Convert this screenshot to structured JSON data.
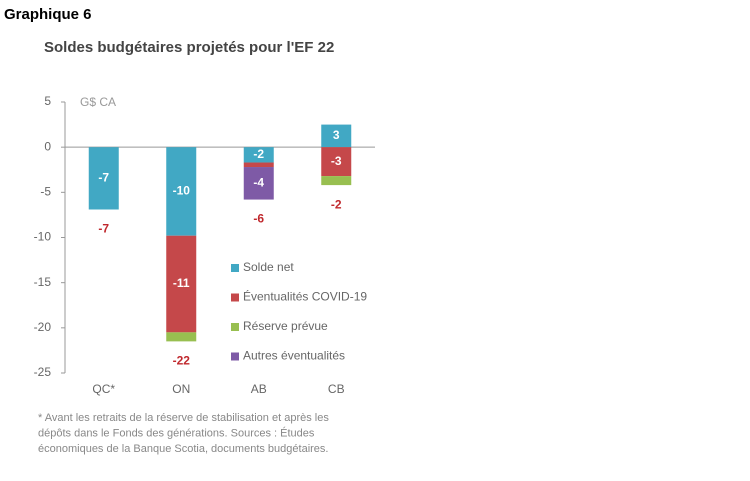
{
  "header": "Graphique 6",
  "chart_data": {
    "type": "stacked-bar",
    "title": "Soldes budgétaires projetés pour l'EF 22",
    "y_unit": "G$ CA",
    "categories": [
      "QC*",
      "ON",
      "AB",
      "CB"
    ],
    "series": [
      {
        "name": "Solde net",
        "color": "#41a8c4",
        "values": [
          -6.9,
          -9.8,
          -1.7,
          2.5
        ],
        "value_labels": [
          "-7",
          "-10",
          "-2",
          "3"
        ]
      },
      {
        "name": "Éventualités COVID-19",
        "color": "#c5484a",
        "values": [
          null,
          -10.7,
          -0.5,
          -3.2
        ],
        "value_labels": [
          null,
          "-11",
          null,
          "-3"
        ]
      },
      {
        "name": "Réserve prévue",
        "color": "#98bf50",
        "values": [
          null,
          -1.0,
          null,
          -1.0
        ]
      },
      {
        "name": "Autres éventualités",
        "color": "#7e5aa6",
        "values": [
          null,
          null,
          -3.6,
          null
        ],
        "value_labels": [
          null,
          null,
          "-4",
          null
        ]
      }
    ],
    "totals": [
      -7,
      -22,
      -6,
      -2
    ],
    "totals_color": "#c0282d",
    "ylim": [
      -25,
      5
    ],
    "yticks": [
      -25,
      -20,
      -15,
      -10,
      -5,
      0,
      5
    ],
    "grid": false,
    "footnote": [
      "* Avant les retraits de la réserve de stabilisation et après les",
      "dépôts dans le Fonds des générations. Sources : Études",
      "économiques de la Banque Scotia, documents budgétaires."
    ]
  }
}
